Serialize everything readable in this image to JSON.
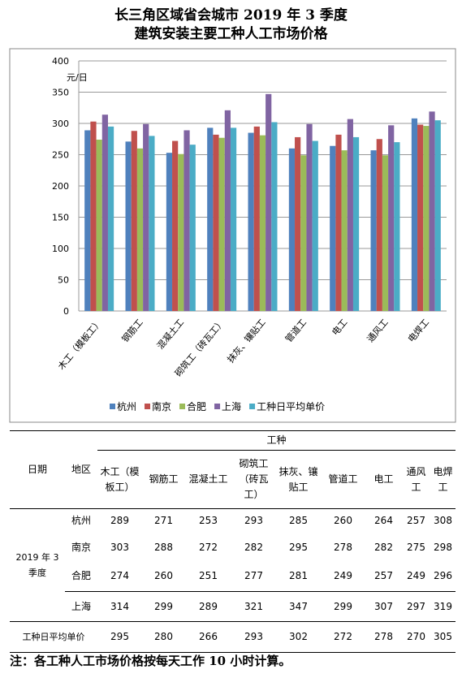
{
  "chart_data": {
    "type": "bar",
    "title": "长三角区域省会城市 2019 年 3 季度",
    "subtitle": "建筑安装主要工种人工市场价格",
    "y_unit": "元/日",
    "categories": [
      "木工（模板工）",
      "钢筋工",
      "混凝土工",
      "砌筑工（砖瓦工）",
      "抹灰、镶贴工",
      "管道工",
      "电工",
      "通风工",
      "电焊工"
    ],
    "series": [
      {
        "name": "杭州",
        "color": "#4f81bd",
        "values": [
          289,
          271,
          253,
          293,
          285,
          260,
          264,
          257,
          308
        ]
      },
      {
        "name": "南京",
        "color": "#c0504d",
        "values": [
          303,
          288,
          272,
          282,
          295,
          278,
          282,
          275,
          298
        ]
      },
      {
        "name": "合肥",
        "color": "#9bbb59",
        "values": [
          274,
          260,
          251,
          277,
          281,
          249,
          257,
          249,
          296
        ]
      },
      {
        "name": "上海",
        "color": "#8064a2",
        "values": [
          314,
          299,
          289,
          321,
          347,
          299,
          307,
          297,
          319
        ]
      },
      {
        "name": "工种日平均单价",
        "color": "#4bacc6",
        "values": [
          295,
          280,
          266,
          293,
          302,
          272,
          278,
          270,
          305
        ]
      }
    ],
    "ylim": [
      0,
      400
    ],
    "yticks": [
      0,
      50,
      100,
      150,
      200,
      250,
      300,
      350,
      400
    ],
    "grid": true,
    "legend": "bottom"
  },
  "table": {
    "group_header": "工种",
    "date_header": "日期",
    "region_header": "地区",
    "period": "2019 年 3 季度"
  },
  "note": "注：各工种人工市场价格按每天工作 10 小时计算。"
}
